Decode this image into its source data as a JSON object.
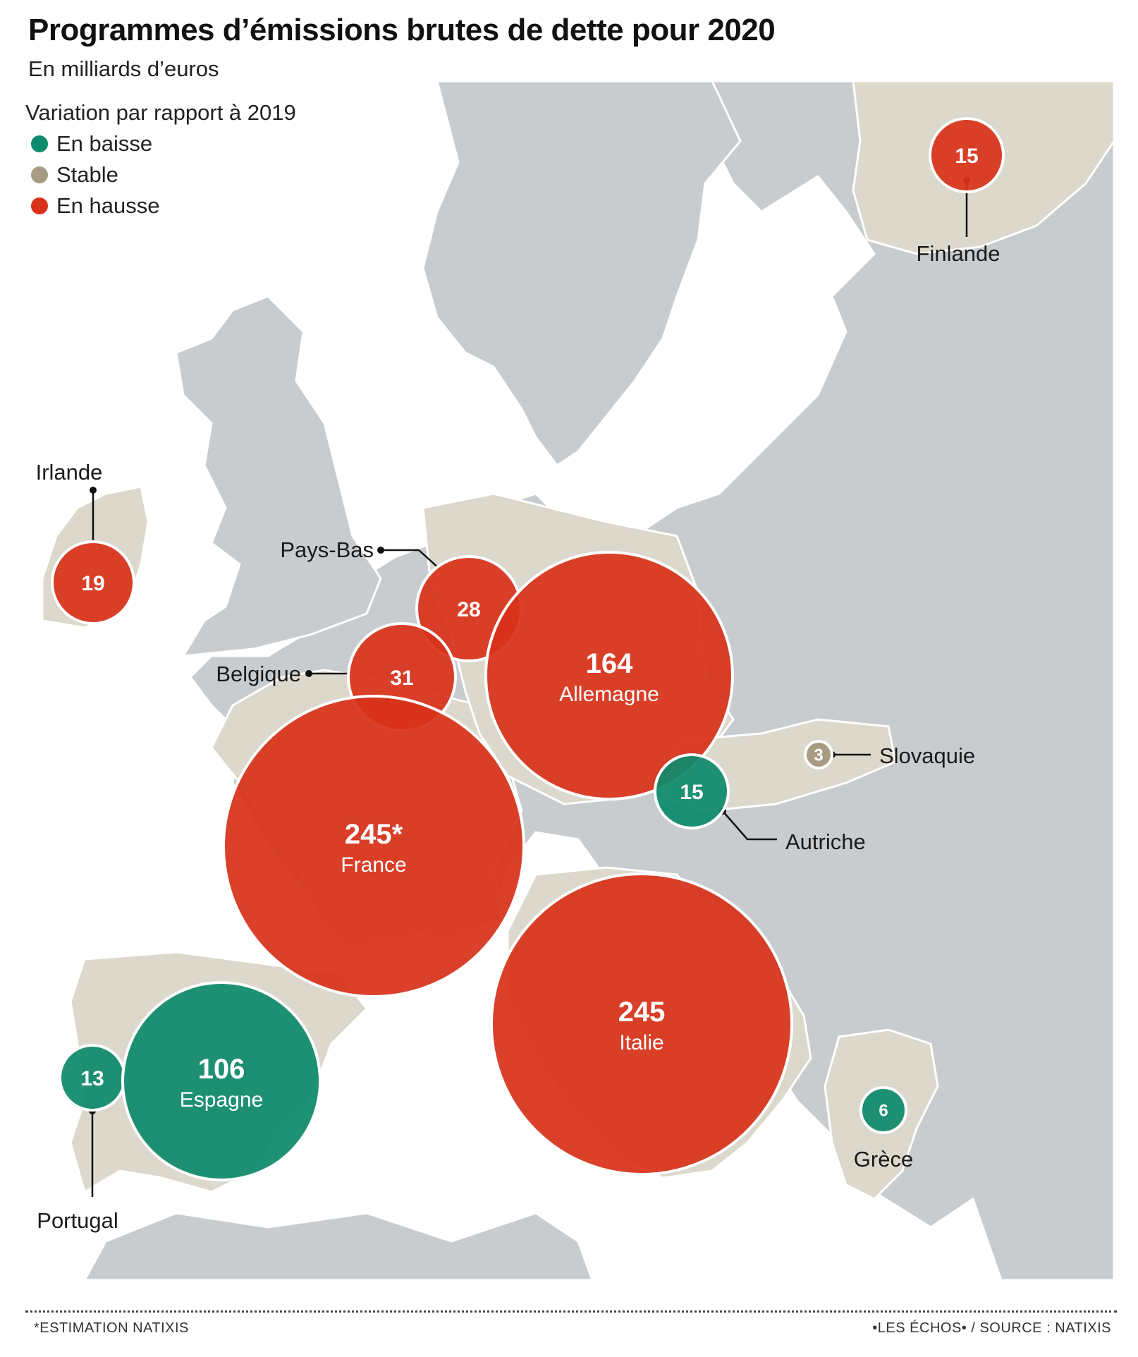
{
  "title": "Programmes d’émissions brutes de dette pour 2020",
  "subtitle": "En milliards d’euros",
  "legend": {
    "title": "Variation par rapport à 2019",
    "items": [
      {
        "key": "baisse",
        "label": "En baisse",
        "color": "#0e8a6c"
      },
      {
        "key": "stable",
        "label": "Stable",
        "color": "#a79c83"
      },
      {
        "key": "hausse",
        "label": "En hausse",
        "color": "#d8321a"
      }
    ]
  },
  "colors": {
    "sea": "#ffffff",
    "land": "#c9ccce",
    "eurozone_land": "#ddd8cc",
    "border": "#ffffff"
  },
  "chart_data": {
    "type": "bubble-map",
    "series": [
      {
        "country": "Finlande",
        "value": 15,
        "value_label": "15",
        "trend": "hausse",
        "label_position": "outside"
      },
      {
        "country": "Irlande",
        "value": 19,
        "value_label": "19",
        "trend": "hausse",
        "label_position": "outside"
      },
      {
        "country": "Pays-Bas",
        "value": 28,
        "value_label": "28",
        "trend": "hausse",
        "label_position": "outside"
      },
      {
        "country": "Belgique",
        "value": 31,
        "value_label": "31",
        "trend": "hausse",
        "label_position": "outside"
      },
      {
        "country": "Allemagne",
        "value": 164,
        "value_label": "164",
        "trend": "hausse",
        "label_position": "inside"
      },
      {
        "country": "France",
        "value": 245,
        "value_label": "245*",
        "trend": "hausse",
        "label_position": "inside"
      },
      {
        "country": "Slovaquie",
        "value": 3,
        "value_label": "3",
        "trend": "stable",
        "label_position": "outside"
      },
      {
        "country": "Autriche",
        "value": 15,
        "value_label": "15",
        "trend": "baisse",
        "label_position": "outside"
      },
      {
        "country": "Italie",
        "value": 245,
        "value_label": "245",
        "trend": "hausse",
        "label_position": "inside"
      },
      {
        "country": "Portugal",
        "value": 13,
        "value_label": "13",
        "trend": "baisse",
        "label_position": "outside"
      },
      {
        "country": "Espagne",
        "value": 106,
        "value_label": "106",
        "trend": "baisse",
        "label_position": "inside"
      },
      {
        "country": "Grèce",
        "value": 6,
        "value_label": "6",
        "trend": "baisse",
        "label_position": "outside"
      }
    ]
  },
  "footnote": "*ESTIMATION NATIXIS",
  "source": "•LES ÉCHOS• / SOURCE : NATIXIS"
}
